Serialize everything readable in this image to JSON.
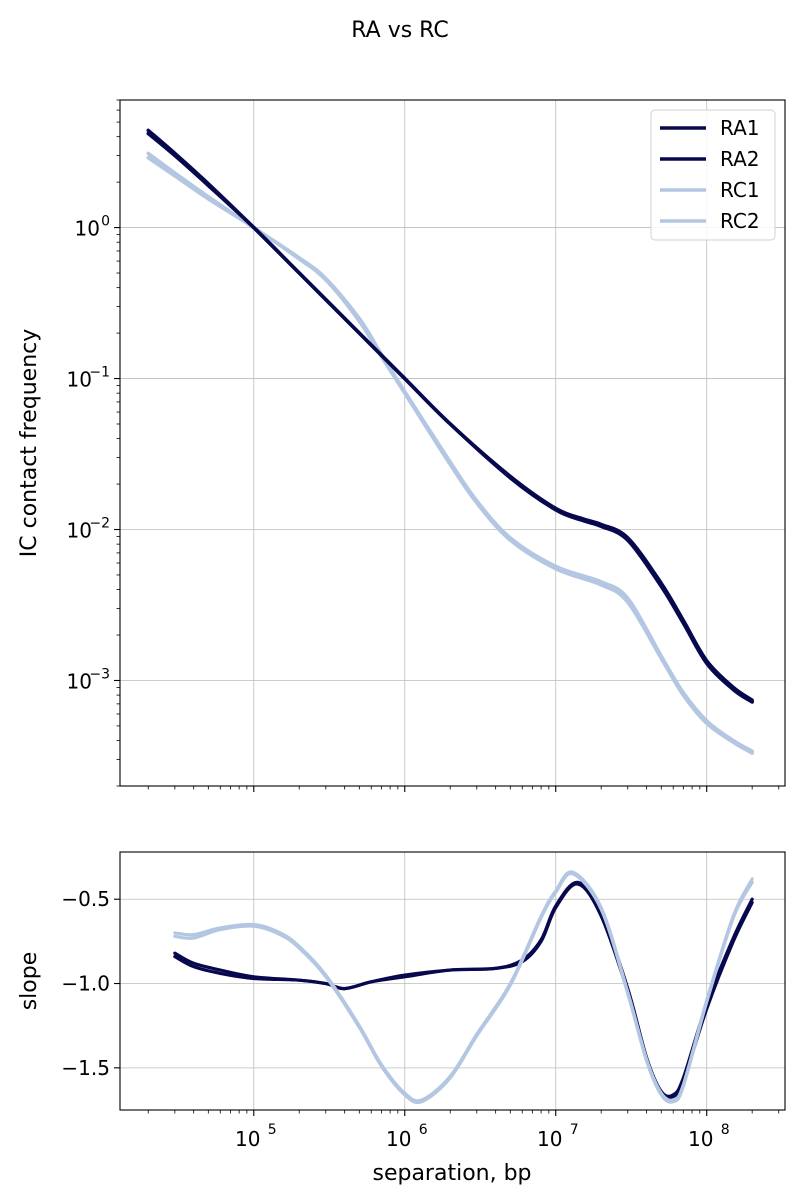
{
  "chart_data": [
    {
      "type": "line",
      "title": "RA vs RC",
      "xlabel": "",
      "ylabel": "IC contact frequency",
      "xscale": "log",
      "yscale": "log",
      "xlim": [
        13000,
        330000000
      ],
      "ylim": [
        0.0002,
        7
      ],
      "grid": true,
      "legend": "top-right",
      "x_ticks": [
        "10^5",
        "10^6",
        "10^7",
        "10^8"
      ],
      "y_ticks": [
        {
          "value": 1,
          "base": "10",
          "exp": "0"
        },
        {
          "value": 0.1,
          "base": "10",
          "exp": "−1"
        },
        {
          "value": 0.01,
          "base": "10",
          "exp": "−2"
        },
        {
          "value": 0.001,
          "base": "10",
          "exp": "−3"
        }
      ],
      "series": [
        {
          "name": "RA1",
          "color": "#08084f",
          "x": [
            20000,
            30000,
            50000,
            100000,
            200000,
            500000,
            1000000,
            2000000,
            5000000,
            10000000,
            15000000,
            20000000,
            30000000,
            50000000,
            70000000,
            100000000,
            150000000,
            200000000
          ],
          "y": [
            4.2,
            3.0,
            1.9,
            1.0,
            0.5,
            0.2,
            0.1,
            0.05,
            0.022,
            0.0135,
            0.0115,
            0.0105,
            0.0085,
            0.0042,
            0.0024,
            0.0013,
            0.00087,
            0.00072
          ]
        },
        {
          "name": "RA2",
          "color": "#08084f",
          "x": [
            20000,
            30000,
            50000,
            100000,
            200000,
            500000,
            1000000,
            2000000,
            5000000,
            10000000,
            15000000,
            20000000,
            30000000,
            50000000,
            70000000,
            100000000,
            150000000,
            200000000
          ],
          "y": [
            4.4,
            3.1,
            1.95,
            1.0,
            0.5,
            0.2,
            0.1,
            0.05,
            0.0225,
            0.0138,
            0.0118,
            0.0108,
            0.0088,
            0.0044,
            0.0025,
            0.00135,
            0.0009,
            0.00074
          ]
        },
        {
          "name": "RC1",
          "color": "#b4c7e2",
          "x": [
            20000,
            30000,
            50000,
            100000,
            200000,
            300000,
            500000,
            700000,
            1000000,
            2000000,
            3000000,
            5000000,
            10000000,
            20000000,
            30000000,
            50000000,
            70000000,
            100000000,
            150000000,
            200000000
          ],
          "y": [
            2.9,
            2.2,
            1.55,
            1.0,
            0.62,
            0.45,
            0.24,
            0.14,
            0.08,
            0.027,
            0.015,
            0.0085,
            0.0055,
            0.0043,
            0.0033,
            0.0014,
            0.0008,
            0.00052,
            0.00039,
            0.00033
          ]
        },
        {
          "name": "RC2",
          "color": "#b4c7e2",
          "x": [
            20000,
            30000,
            50000,
            100000,
            200000,
            300000,
            500000,
            700000,
            1000000,
            2000000,
            3000000,
            5000000,
            10000000,
            20000000,
            30000000,
            50000000,
            70000000,
            100000000,
            150000000,
            200000000
          ],
          "y": [
            3.1,
            2.3,
            1.6,
            1.0,
            0.63,
            0.46,
            0.25,
            0.145,
            0.082,
            0.028,
            0.0155,
            0.0088,
            0.0057,
            0.0045,
            0.0035,
            0.00145,
            0.00083,
            0.00054,
            0.0004,
            0.00034
          ]
        }
      ]
    },
    {
      "type": "line",
      "title": "",
      "xlabel": "separation, bp",
      "ylabel": "slope",
      "xscale": "log",
      "yscale": "linear",
      "xlim": [
        13000,
        330000000
      ],
      "ylim": [
        -1.75,
        -0.22
      ],
      "grid": true,
      "x_ticks": [
        {
          "value": 100000,
          "base": "10",
          "exp": "5"
        },
        {
          "value": 1000000,
          "base": "10",
          "exp": "6"
        },
        {
          "value": 10000000,
          "base": "10",
          "exp": "7"
        },
        {
          "value": 100000000,
          "base": "10",
          "exp": "8"
        }
      ],
      "y_ticks": [
        "−0.5",
        "−1.0",
        "−1.5"
      ],
      "series": [
        {
          "name": "RA1",
          "color": "#08084f",
          "x": [
            30000,
            40000,
            60000,
            100000,
            200000,
            300000,
            400000,
            600000,
            1000000,
            2000000,
            4000000,
            6000000,
            8000000,
            10000000,
            14000000,
            20000000,
            30000000,
            40000000,
            50000000,
            60000000,
            70000000,
            100000000,
            150000000,
            200000000
          ],
          "y": [
            -0.84,
            -0.9,
            -0.94,
            -0.97,
            -0.98,
            -1.0,
            -1.03,
            -0.99,
            -0.96,
            -0.92,
            -0.91,
            -0.87,
            -0.75,
            -0.55,
            -0.41,
            -0.6,
            -1.05,
            -1.45,
            -1.65,
            -1.67,
            -1.58,
            -1.15,
            -0.75,
            -0.52
          ]
        },
        {
          "name": "RA2",
          "color": "#08084f",
          "x": [
            30000,
            40000,
            60000,
            100000,
            200000,
            300000,
            400000,
            600000,
            1000000,
            2000000,
            4000000,
            6000000,
            8000000,
            10000000,
            14000000,
            20000000,
            30000000,
            40000000,
            50000000,
            60000000,
            70000000,
            100000000,
            150000000,
            200000000
          ],
          "y": [
            -0.82,
            -0.88,
            -0.92,
            -0.96,
            -0.98,
            -1.0,
            -1.03,
            -0.99,
            -0.95,
            -0.92,
            -0.91,
            -0.86,
            -0.74,
            -0.54,
            -0.4,
            -0.58,
            -1.03,
            -1.44,
            -1.64,
            -1.66,
            -1.56,
            -1.12,
            -0.73,
            -0.5
          ]
        },
        {
          "name": "RC1",
          "color": "#b4c7e2",
          "x": [
            30000,
            40000,
            60000,
            100000,
            150000,
            200000,
            300000,
            500000,
            700000,
            1000000,
            1300000,
            2000000,
            3000000,
            5000000,
            8000000,
            10000000,
            13000000,
            20000000,
            30000000,
            40000000,
            50000000,
            60000000,
            70000000,
            100000000,
            150000000,
            200000000
          ],
          "y": [
            -0.7,
            -0.71,
            -0.67,
            -0.65,
            -0.7,
            -0.78,
            -0.95,
            -1.25,
            -1.48,
            -1.65,
            -1.69,
            -1.55,
            -1.3,
            -1.0,
            -0.6,
            -0.45,
            -0.34,
            -0.55,
            -1.05,
            -1.45,
            -1.65,
            -1.69,
            -1.6,
            -1.1,
            -0.6,
            -0.38
          ]
        },
        {
          "name": "RC2",
          "color": "#b4c7e2",
          "x": [
            30000,
            40000,
            60000,
            100000,
            150000,
            200000,
            300000,
            500000,
            700000,
            1000000,
            1300000,
            2000000,
            3000000,
            5000000,
            8000000,
            10000000,
            13000000,
            20000000,
            30000000,
            40000000,
            50000000,
            60000000,
            70000000,
            100000000,
            150000000,
            200000000
          ],
          "y": [
            -0.72,
            -0.73,
            -0.68,
            -0.66,
            -0.71,
            -0.79,
            -0.96,
            -1.26,
            -1.49,
            -1.66,
            -1.7,
            -1.56,
            -1.31,
            -1.01,
            -0.61,
            -0.46,
            -0.35,
            -0.56,
            -1.06,
            -1.46,
            -1.66,
            -1.7,
            -1.61,
            -1.11,
            -0.61,
            -0.4
          ]
        }
      ]
    }
  ]
}
